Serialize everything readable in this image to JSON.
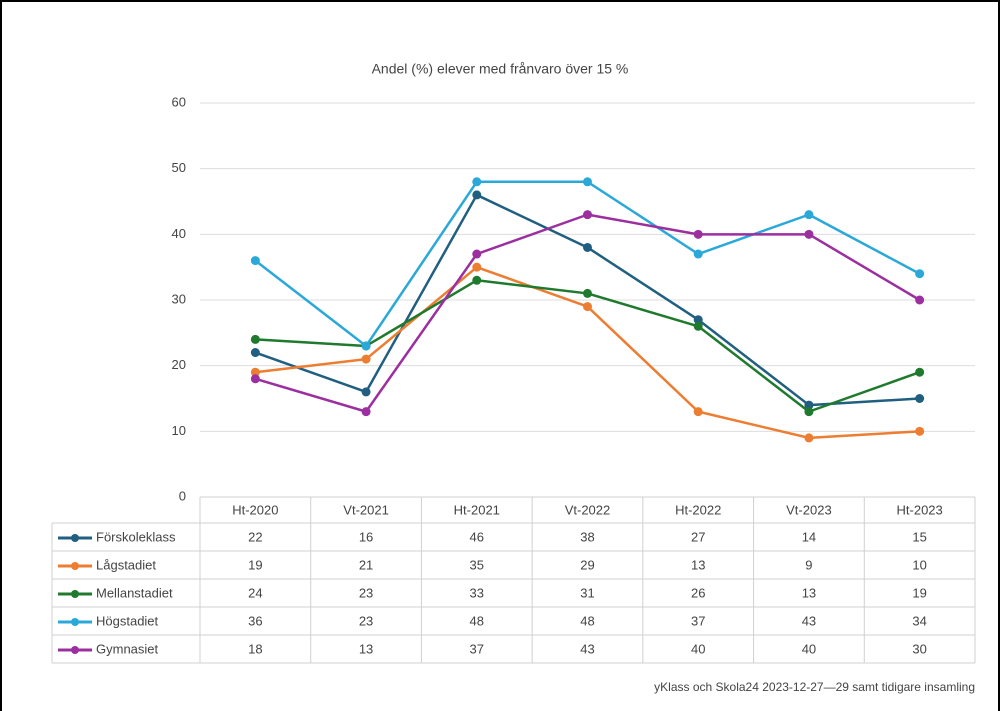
{
  "chart_data": {
    "type": "line",
    "title": "Andel (%) elever med frånvaro över 15 %",
    "categories": [
      "Ht-2020",
      "Vt-2021",
      "Ht-2021",
      "Vt-2022",
      "Ht-2022",
      "Vt-2023",
      "Ht-2023"
    ],
    "series": [
      {
        "name": "Förskoleklass",
        "color": "#215f80",
        "values": [
          22,
          16,
          46,
          38,
          27,
          14,
          15
        ]
      },
      {
        "name": "Lågstadiet",
        "color": "#ed7d31",
        "values": [
          19,
          21,
          35,
          29,
          13,
          9,
          10
        ]
      },
      {
        "name": "Mellanstadiet",
        "color": "#1f7a2e",
        "values": [
          24,
          23,
          33,
          31,
          26,
          13,
          19
        ]
      },
      {
        "name": "Högstadiet",
        "color": "#2aa8d8",
        "values": [
          36,
          23,
          48,
          48,
          37,
          43,
          34
        ]
      },
      {
        "name": "Gymnasiet",
        "color": "#9b2fa0",
        "values": [
          18,
          13,
          37,
          43,
          40,
          40,
          30
        ]
      }
    ],
    "ylim": [
      0,
      60
    ],
    "yticks": [
      0,
      10,
      20,
      30,
      40,
      50,
      60
    ],
    "grid": true,
    "source": "yKlass och Skola24 2023-12-27—29 samt tidigare insamling"
  }
}
